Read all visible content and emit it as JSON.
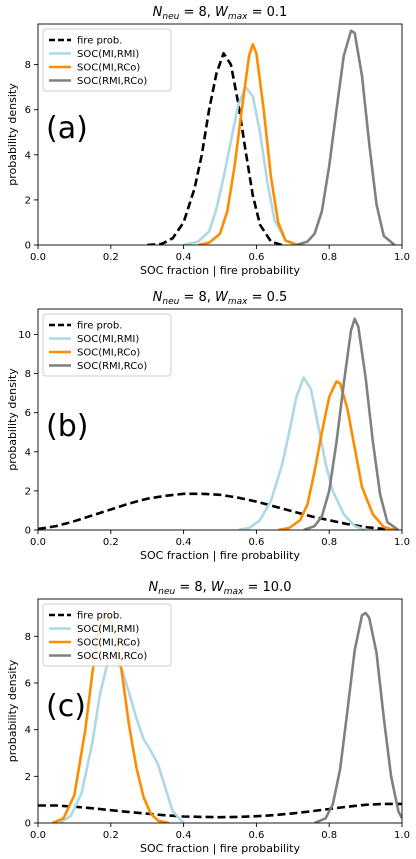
{
  "chart_data": [
    {
      "type": "line",
      "title": "N_neu = 8,  W_max = 0.1",
      "title_parts": {
        "n_sym": "N",
        "n_sub": "neu",
        "n_val": "= 8,",
        "w_sym": "W",
        "w_sub": "max",
        "w_val": "= 0.1"
      },
      "panel": "(a)",
      "xlabel": "SOC fraction | fire  probability",
      "ylabel": "probability density",
      "xlim": [
        0.0,
        1.0
      ],
      "ylim": [
        0,
        9.8
      ],
      "xticks": [
        "0.0",
        "0.2",
        "0.4",
        "0.6",
        "0.8",
        "1.0"
      ],
      "yticks": [
        0,
        2,
        4,
        6,
        8
      ],
      "legend_position": "top-left",
      "grid": false,
      "series": [
        {
          "name": "fire prob.",
          "color": "#000000",
          "dash": true,
          "x": [
            0.3,
            0.34,
            0.37,
            0.4,
            0.43,
            0.45,
            0.47,
            0.49,
            0.51,
            0.53,
            0.55,
            0.57,
            0.59,
            0.61,
            0.64,
            0.67
          ],
          "y": [
            0.0,
            0.05,
            0.3,
            1.0,
            2.5,
            4.0,
            6.0,
            7.6,
            8.5,
            8.0,
            6.3,
            4.2,
            2.2,
            0.9,
            0.15,
            0.0
          ]
        },
        {
          "name": "SOC(MI,RMI)",
          "color": "#add8e6",
          "dash": false,
          "x": [
            0.4,
            0.44,
            0.47,
            0.49,
            0.51,
            0.53,
            0.55,
            0.57,
            0.59,
            0.61,
            0.63,
            0.65,
            0.68,
            0.72
          ],
          "y": [
            0.0,
            0.15,
            0.6,
            1.6,
            3.0,
            4.6,
            6.2,
            7.0,
            6.6,
            5.0,
            2.8,
            1.1,
            0.2,
            0.0
          ]
        },
        {
          "name": "SOC(MI,RCo)",
          "color": "#ff8c00",
          "dash": false,
          "x": [
            0.44,
            0.47,
            0.5,
            0.52,
            0.54,
            0.56,
            0.58,
            0.59,
            0.6,
            0.62,
            0.64,
            0.66,
            0.68,
            0.71
          ],
          "y": [
            0.0,
            0.1,
            0.5,
            1.5,
            3.5,
            6.0,
            8.4,
            8.9,
            8.5,
            6.0,
            3.0,
            1.0,
            0.2,
            0.0
          ]
        },
        {
          "name": "SOC(RMI,RCo)",
          "color": "#808080",
          "dash": false,
          "x": [
            0.71,
            0.74,
            0.76,
            0.78,
            0.8,
            0.82,
            0.84,
            0.86,
            0.87,
            0.89,
            0.91,
            0.93,
            0.95,
            0.98
          ],
          "y": [
            0.0,
            0.15,
            0.5,
            1.5,
            3.5,
            6.0,
            8.4,
            9.5,
            9.4,
            7.5,
            4.5,
            1.8,
            0.4,
            0.0
          ]
        }
      ]
    },
    {
      "type": "line",
      "title": "N_neu = 8,  W_max = 0.5",
      "title_parts": {
        "n_sym": "N",
        "n_sub": "neu",
        "n_val": "= 8,",
        "w_sym": "W",
        "w_sub": "max",
        "w_val": "= 0.5"
      },
      "panel": "(b)",
      "xlabel": "SOC fraction | fire  probability",
      "ylabel": "probability density",
      "xlim": [
        0.0,
        1.0
      ],
      "ylim": [
        0,
        11.3
      ],
      "xticks": [
        "0.0",
        "0.2",
        "0.4",
        "0.6",
        "0.8",
        "1.0"
      ],
      "yticks": [
        0,
        2,
        4,
        6,
        8,
        10
      ],
      "legend_position": "top-left",
      "grid": false,
      "series": [
        {
          "name": "fire prob.",
          "color": "#000000",
          "dash": true,
          "x": [
            0.0,
            0.05,
            0.1,
            0.15,
            0.2,
            0.25,
            0.3,
            0.35,
            0.4,
            0.45,
            0.5,
            0.55,
            0.6,
            0.65,
            0.7,
            0.75,
            0.8,
            0.85,
            0.9,
            0.95,
            1.0
          ],
          "y": [
            0.05,
            0.2,
            0.45,
            0.75,
            1.05,
            1.35,
            1.6,
            1.75,
            1.85,
            1.85,
            1.8,
            1.65,
            1.45,
            1.2,
            0.95,
            0.7,
            0.5,
            0.3,
            0.15,
            0.05,
            0.0
          ]
        },
        {
          "name": "SOC(MI,RMI)",
          "color": "#add8e6",
          "dash": false,
          "x": [
            0.55,
            0.58,
            0.61,
            0.64,
            0.67,
            0.69,
            0.71,
            0.73,
            0.75,
            0.77,
            0.79,
            0.81,
            0.84,
            0.87,
            0.9
          ],
          "y": [
            0.0,
            0.1,
            0.5,
            1.5,
            3.3,
            5.0,
            6.8,
            7.8,
            7.2,
            5.3,
            3.4,
            2.0,
            0.8,
            0.2,
            0.0
          ]
        },
        {
          "name": "SOC(MI,RCo)",
          "color": "#ff8c00",
          "dash": false,
          "x": [
            0.66,
            0.69,
            0.72,
            0.74,
            0.76,
            0.78,
            0.8,
            0.82,
            0.83,
            0.85,
            0.87,
            0.89,
            0.92,
            0.95,
            0.98
          ],
          "y": [
            0.0,
            0.1,
            0.5,
            1.3,
            3.0,
            5.0,
            6.8,
            7.6,
            7.5,
            6.2,
            4.2,
            2.2,
            0.8,
            0.15,
            0.0
          ]
        },
        {
          "name": "SOC(RMI,RCo)",
          "color": "#808080",
          "dash": false,
          "x": [
            0.73,
            0.76,
            0.78,
            0.8,
            0.82,
            0.84,
            0.86,
            0.87,
            0.88,
            0.9,
            0.92,
            0.94,
            0.96,
            0.99
          ],
          "y": [
            0.0,
            0.2,
            0.7,
            2.0,
            4.5,
            7.5,
            10.2,
            10.8,
            10.4,
            7.8,
            4.5,
            1.8,
            0.4,
            0.0
          ]
        }
      ]
    },
    {
      "type": "line",
      "title": "N_neu = 8,  W_max = 10.0",
      "title_parts": {
        "n_sym": "N",
        "n_sub": "neu",
        "n_val": "= 8,",
        "w_sym": "W",
        "w_sub": "max",
        "w_val": "= 10.0"
      },
      "panel": "(c)",
      "xlabel": "SOC fraction | fire  probability",
      "ylabel": "probability density",
      "xlim": [
        0.0,
        1.0
      ],
      "ylim": [
        0,
        9.6
      ],
      "xticks": [
        "0.0",
        "0.2",
        "0.4",
        "0.6",
        "0.8",
        "1.0"
      ],
      "yticks": [
        0,
        2,
        4,
        6,
        8
      ],
      "legend_position": "top-left",
      "grid": false,
      "series": [
        {
          "name": "fire prob.",
          "color": "#000000",
          "dash": true,
          "x": [
            0.0,
            0.05,
            0.1,
            0.15,
            0.2,
            0.25,
            0.3,
            0.35,
            0.4,
            0.45,
            0.5,
            0.55,
            0.6,
            0.65,
            0.7,
            0.75,
            0.8,
            0.85,
            0.9,
            0.95,
            1.0
          ],
          "y": [
            0.75,
            0.75,
            0.7,
            0.63,
            0.55,
            0.47,
            0.4,
            0.33,
            0.28,
            0.26,
            0.25,
            0.26,
            0.29,
            0.34,
            0.41,
            0.5,
            0.6,
            0.7,
            0.78,
            0.82,
            0.82
          ]
        },
        {
          "name": "SOC(MI,RMI)",
          "color": "#add8e6",
          "dash": false,
          "x": [
            0.06,
            0.09,
            0.12,
            0.15,
            0.17,
            0.19,
            0.21,
            0.23,
            0.25,
            0.27,
            0.29,
            0.31,
            0.33,
            0.35,
            0.37,
            0.4
          ],
          "y": [
            0.0,
            0.3,
            1.3,
            3.5,
            5.5,
            6.8,
            7.1,
            6.6,
            5.6,
            4.5,
            3.6,
            3.1,
            2.5,
            1.5,
            0.5,
            0.0
          ]
        },
        {
          "name": "SOC(MI,RCo)",
          "color": "#ff8c00",
          "dash": false,
          "x": [
            0.04,
            0.07,
            0.1,
            0.13,
            0.15,
            0.17,
            0.19,
            0.21,
            0.23,
            0.25,
            0.27,
            0.29,
            0.31,
            0.33,
            0.36
          ],
          "y": [
            0.0,
            0.2,
            1.2,
            4.0,
            6.5,
            8.5,
            9.0,
            8.3,
            6.5,
            4.2,
            2.4,
            1.1,
            0.4,
            0.1,
            0.0
          ]
        },
        {
          "name": "SOC(RMI,RCo)",
          "color": "#808080",
          "dash": false,
          "x": [
            0.76,
            0.79,
            0.81,
            0.83,
            0.85,
            0.87,
            0.89,
            0.9,
            0.91,
            0.93,
            0.95,
            0.97,
            0.99,
            1.0
          ],
          "y": [
            0.0,
            0.2,
            0.8,
            2.3,
            4.8,
            7.4,
            8.9,
            9.0,
            8.8,
            7.3,
            4.5,
            2.0,
            0.5,
            0.2
          ]
        }
      ]
    }
  ]
}
